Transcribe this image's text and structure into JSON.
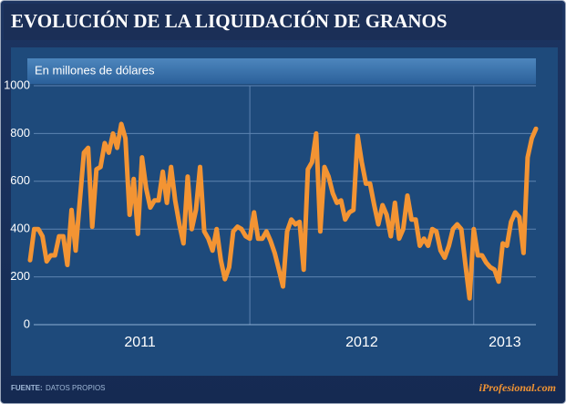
{
  "chart_data": {
    "type": "line",
    "title": "EVOLUCIÓN DE LA LIQUIDACIÓN DE GRANOS",
    "subtitle": "En millones de dólares",
    "source_label": "FUENTE:",
    "source": "DATOS PROPIOS",
    "brand": "iProfesional.com",
    "color": "#f39433",
    "ylim": [
      0,
      1000
    ],
    "yticks": [
      0,
      200,
      400,
      600,
      800,
      1000
    ],
    "grid": true,
    "years": [
      {
        "label": "2011",
        "values": [
          270,
          400,
          400,
          370,
          265,
          290,
          290,
          370,
          370,
          250,
          480,
          310,
          520,
          720,
          740,
          410,
          650,
          660,
          760,
          720,
          800,
          740,
          840,
          780,
          460,
          610,
          380,
          700,
          570,
          490,
          520,
          520,
          640,
          510,
          660,
          520,
          420,
          340,
          620,
          400,
          480,
          660,
          390,
          360,
          310,
          400,
          270,
          190,
          240,
          390,
          410,
          400,
          370
        ]
      },
      {
        "label": "2012",
        "values": [
          360,
          470,
          360,
          360,
          390,
          350,
          300,
          230,
          160,
          390,
          440,
          420,
          430,
          230,
          650,
          680,
          800,
          390,
          660,
          620,
          550,
          510,
          520,
          440,
          470,
          480,
          790,
          680,
          590,
          590,
          500,
          420,
          500,
          460,
          370,
          510,
          360,
          400,
          540,
          440,
          440,
          330,
          360,
          330,
          400,
          390,
          310,
          280,
          330,
          400,
          420,
          400,
          250,
          110
        ]
      },
      {
        "label": "2013",
        "values": [
          400,
          290,
          290,
          260,
          240,
          230,
          180,
          340,
          330,
          430,
          470,
          450,
          300,
          700,
          780,
          820
        ]
      }
    ]
  }
}
